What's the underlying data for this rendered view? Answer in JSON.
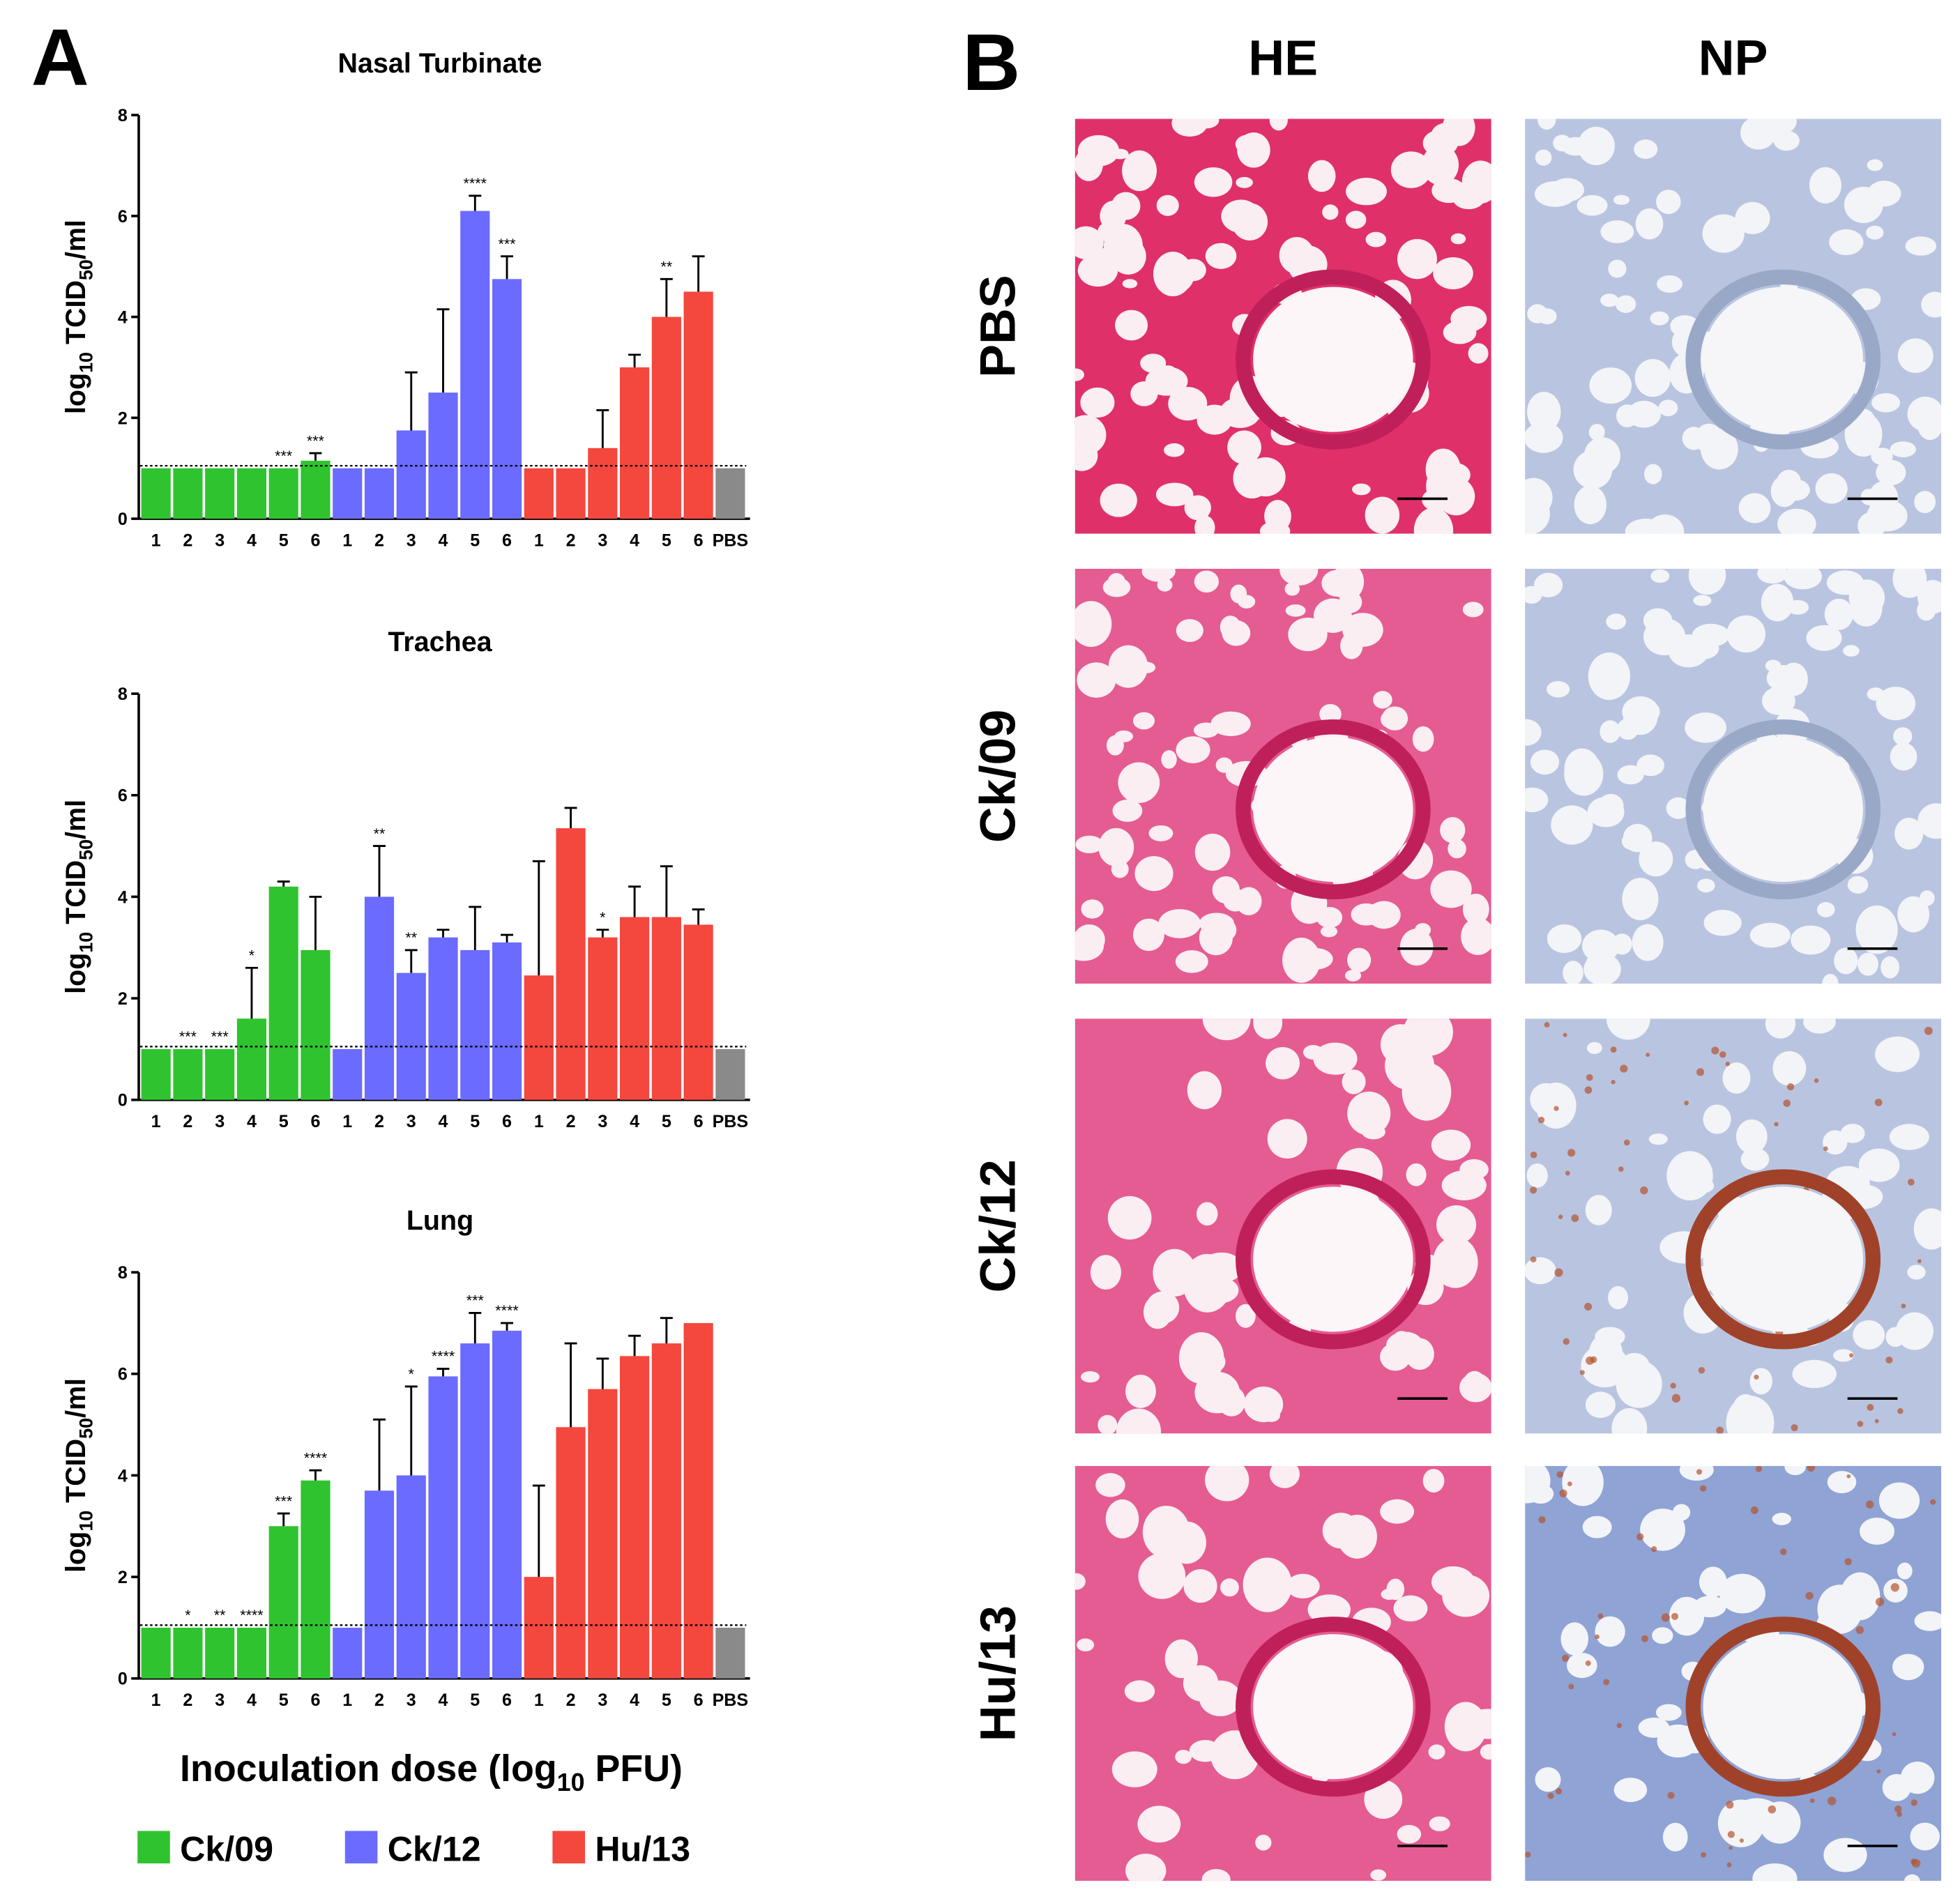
{
  "panel_labels": [
    "A",
    "B"
  ],
  "x_label": [
    "Inoculation dose (log",
    "10",
    " PFU)"
  ],
  "y_label": [
    "log",
    "10",
    " TCID",
    "50",
    "/ml"
  ],
  "chart_data": [
    {
      "type": "bar",
      "title": "Nasal Turbinate",
      "ylim": [
        0,
        8
      ],
      "yticks": [
        0,
        2,
        4,
        6,
        8
      ],
      "detection_limit": 1,
      "series": [
        {
          "name": "Ck/09",
          "color": "#2fc42f",
          "categories": [
            "1",
            "2",
            "3",
            "4",
            "5",
            "6"
          ],
          "values": [
            1,
            1,
            1,
            1,
            1,
            1.15
          ],
          "errors": [
            null,
            null,
            null,
            null,
            null,
            0.15
          ],
          "significance": [
            null,
            null,
            null,
            null,
            "***",
            "***"
          ]
        },
        {
          "name": "Ck/12",
          "color": "#6b6bff",
          "categories": [
            "1",
            "2",
            "3",
            "4",
            "5",
            "6"
          ],
          "values": [
            1,
            1,
            1.75,
            2.5,
            6.1,
            4.75
          ],
          "errors": [
            null,
            null,
            1.15,
            1.65,
            0.3,
            0.45
          ],
          "significance": [
            null,
            null,
            null,
            null,
            "****",
            "***"
          ]
        },
        {
          "name": "Hu/13",
          "color": "#f4473e",
          "categories": [
            "1",
            "2",
            "3",
            "4",
            "5",
            "6"
          ],
          "values": [
            1,
            1,
            1.4,
            3.0,
            4.0,
            4.5
          ],
          "errors": [
            null,
            null,
            0.75,
            0.25,
            0.75,
            0.7
          ],
          "significance": [
            null,
            null,
            null,
            null,
            "**",
            null
          ]
        }
      ],
      "control": {
        "label": "PBS",
        "value": 1,
        "color": "#8a8a8a"
      }
    },
    {
      "type": "bar",
      "title": "Trachea",
      "ylim": [
        0,
        8
      ],
      "yticks": [
        0,
        2,
        4,
        6,
        8
      ],
      "detection_limit": 1,
      "series": [
        {
          "name": "Ck/09",
          "color": "#2fc42f",
          "categories": [
            "1",
            "2",
            "3",
            "4",
            "5",
            "6"
          ],
          "values": [
            1,
            1,
            1,
            1.6,
            4.2,
            2.95
          ],
          "errors": [
            null,
            null,
            null,
            1.0,
            0.1,
            1.05
          ],
          "significance": [
            null,
            "***",
            "***",
            "*",
            null,
            null
          ]
        },
        {
          "name": "Ck/12",
          "color": "#6b6bff",
          "categories": [
            "1",
            "2",
            "3",
            "4",
            "5",
            "6"
          ],
          "values": [
            1,
            4.0,
            2.5,
            3.2,
            2.95,
            3.1
          ],
          "errors": [
            null,
            1.0,
            0.45,
            0.15,
            0.85,
            0.15
          ],
          "significance": [
            null,
            "**",
            "**",
            null,
            null,
            null
          ]
        },
        {
          "name": "Hu/13",
          "color": "#f4473e",
          "categories": [
            "1",
            "2",
            "3",
            "4",
            "5",
            "6"
          ],
          "values": [
            2.45,
            5.35,
            3.2,
            3.6,
            3.6,
            3.45
          ],
          "errors": [
            2.25,
            0.4,
            0.15,
            0.6,
            1.0,
            0.3
          ],
          "significance": [
            null,
            null,
            "*",
            null,
            null,
            null
          ]
        }
      ],
      "control": {
        "label": "PBS",
        "value": 1,
        "color": "#8a8a8a"
      }
    },
    {
      "type": "bar",
      "title": "Lung",
      "ylim": [
        0,
        8
      ],
      "yticks": [
        0,
        2,
        4,
        6,
        8
      ],
      "detection_limit": 1,
      "series": [
        {
          "name": "Ck/09",
          "color": "#2fc42f",
          "categories": [
            "1",
            "2",
            "3",
            "4",
            "5",
            "6"
          ],
          "values": [
            1,
            1,
            1,
            1,
            3.0,
            3.9
          ],
          "errors": [
            null,
            null,
            null,
            null,
            0.25,
            0.2
          ],
          "significance": [
            null,
            "*",
            "**",
            "****",
            "***",
            "****"
          ]
        },
        {
          "name": "Ck/12",
          "color": "#6b6bff",
          "categories": [
            "1",
            "2",
            "3",
            "4",
            "5",
            "6"
          ],
          "values": [
            1,
            3.7,
            4.0,
            5.95,
            6.6,
            6.85
          ],
          "errors": [
            null,
            1.4,
            1.75,
            0.15,
            0.6,
            0.15
          ],
          "significance": [
            null,
            null,
            "*",
            "****",
            "***",
            "****"
          ]
        },
        {
          "name": "Hu/13",
          "color": "#f4473e",
          "categories": [
            "1",
            "2",
            "3",
            "4",
            "5",
            "6"
          ],
          "values": [
            2.0,
            4.95,
            5.7,
            6.35,
            6.6,
            7.0
          ],
          "errors": [
            1.8,
            1.65,
            0.6,
            0.4,
            0.5,
            null
          ],
          "significance": [
            null,
            null,
            null,
            null,
            null,
            null
          ]
        }
      ],
      "control": {
        "label": "PBS",
        "value": 1,
        "color": "#8a8a8a"
      }
    }
  ],
  "histology": {
    "columns": [
      "HE",
      "NP"
    ],
    "rows": [
      "PBS",
      "Ck/09",
      "Ck/12",
      "Hu/13"
    ]
  }
}
